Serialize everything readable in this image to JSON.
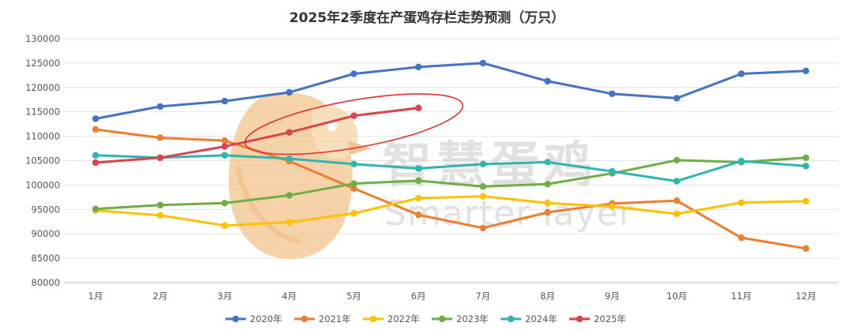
{
  "chart_data": {
    "type": "line",
    "title": "2025年2季度在产蛋鸡存栏走势预测（万只）",
    "categories": [
      "1月",
      "2月",
      "3月",
      "4月",
      "5月",
      "6月",
      "7月",
      "8月",
      "9月",
      "10月",
      "11月",
      "12月"
    ],
    "ylim": [
      80000,
      130000
    ],
    "yticks": [
      80000,
      85000,
      90000,
      95000,
      100000,
      105000,
      110000,
      115000,
      120000,
      125000,
      130000
    ],
    "grid": true,
    "legend_position": "bottom",
    "series": [
      {
        "name": "2020年",
        "color": "#4472C4",
        "values": [
          113600,
          116100,
          117200,
          119000,
          122800,
          124200,
          125000,
          121300,
          118700,
          117800,
          122800,
          123400
        ]
      },
      {
        "name": "2021年",
        "color": "#ED7D31",
        "values": [
          111400,
          109700,
          109100,
          104900,
          99300,
          93900,
          91200,
          94400,
          96200,
          96800,
          89200,
          87000
        ]
      },
      {
        "name": "2022年",
        "color": "#FFC000",
        "values": [
          94800,
          93800,
          91700,
          92400,
          94200,
          97300,
          97700,
          96300,
          95600,
          94100,
          96400,
          96700
        ]
      },
      {
        "name": "2023年",
        "color": "#70AD47",
        "values": [
          95100,
          95900,
          96300,
          97900,
          100300,
          100900,
          99700,
          100200,
          102400,
          105100,
          104700,
          105600
        ]
      },
      {
        "name": "2024年",
        "color": "#2EB5B0",
        "values": [
          106100,
          105600,
          106100,
          105400,
          104300,
          103400,
          104300,
          104700,
          102800,
          100800,
          104900,
          103900
        ]
      },
      {
        "name": "2025年",
        "color": "#D9434E",
        "values": [
          104600,
          105600,
          107900,
          110800,
          114200,
          115800,
          null,
          null,
          null,
          null,
          null,
          null
        ]
      }
    ],
    "annotation": {
      "type": "ellipse-highlight",
      "series": "2025年",
      "color": "#E53030"
    }
  },
  "watermark": {
    "cn": "智慧蛋鸡",
    "en": "Smarter layer",
    "color": "#F3C48E"
  }
}
